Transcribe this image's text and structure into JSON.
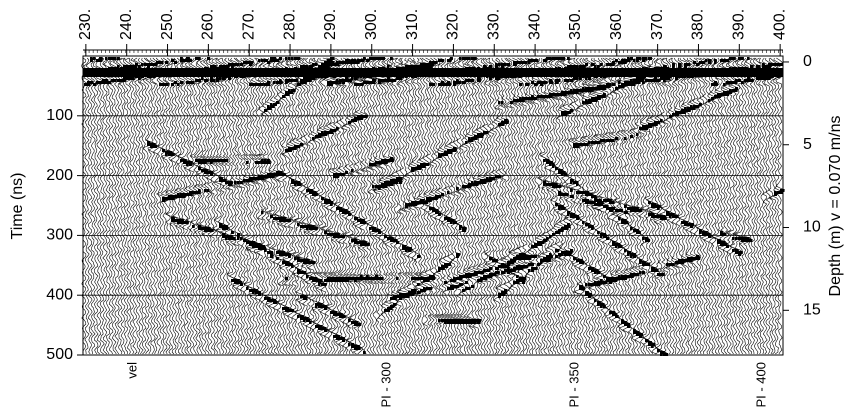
{
  "chart_data": {
    "type": "radargram",
    "y_label": "Time (ns)",
    "y2_label": "Depth (m) v = 0.070 m/ns",
    "xlim": [
      229.3,
      400.7
    ],
    "xticks": [
      {
        "value": 230,
        "label": "230."
      },
      {
        "value": 240,
        "label": "240."
      },
      {
        "value": 250,
        "label": "250."
      },
      {
        "value": 260,
        "label": "260."
      },
      {
        "value": 270,
        "label": "270."
      },
      {
        "value": 280,
        "label": "280."
      },
      {
        "value": 290,
        "label": "290."
      },
      {
        "value": 300,
        "label": "300."
      },
      {
        "value": 310,
        "label": "310."
      },
      {
        "value": 320,
        "label": "320."
      },
      {
        "value": 330,
        "label": "330."
      },
      {
        "value": 340,
        "label": "340."
      },
      {
        "value": 350,
        "label": "350."
      },
      {
        "value": 360,
        "label": "360."
      },
      {
        "value": 370,
        "label": "370."
      },
      {
        "value": 380,
        "label": "380."
      },
      {
        "value": 390,
        "label": "390."
      },
      {
        "value": 400,
        "label": "400."
      }
    ],
    "ylim": [
      0,
      500
    ],
    "yticks": [
      100,
      200,
      300,
      400,
      500
    ],
    "y2lim": [
      -0.36,
      17.7
    ],
    "y2ticks": [
      0,
      5,
      10,
      15
    ],
    "grid": true,
    "annotations": [
      "vel",
      "PI - 300",
      "PI - 350",
      "PI - 400"
    ]
  }
}
